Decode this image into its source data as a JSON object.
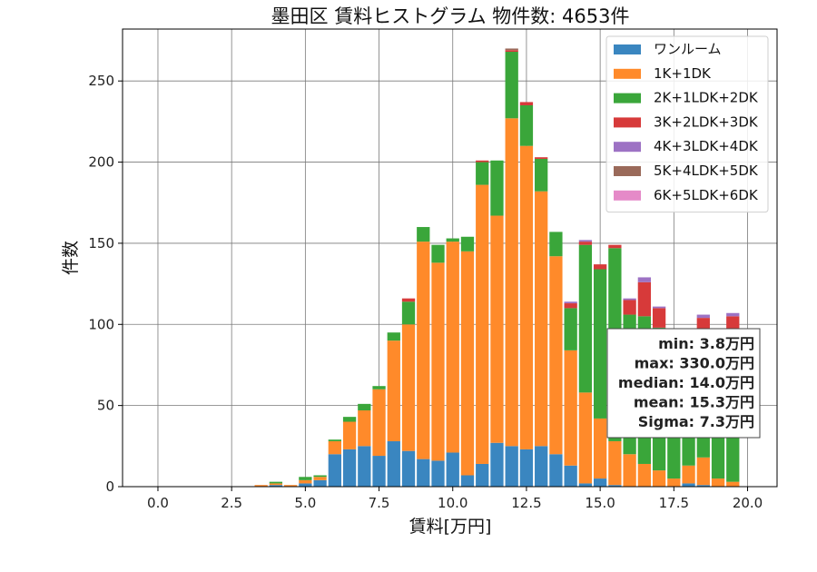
{
  "chart_data": {
    "type": "bar",
    "stacked": true,
    "title": "墨田区 賃料ヒストグラム 物件数: 4653件",
    "xlabel": "賃料[万円]",
    "ylabel": "件数",
    "xlim": [
      -1.2,
      21.0
    ],
    "ylim": [
      0,
      282
    ],
    "xticks": [
      0.0,
      2.5,
      5.0,
      7.5,
      10.0,
      12.5,
      15.0,
      17.5,
      20.0
    ],
    "xtick_labels": [
      "0.0",
      "2.5",
      "5.0",
      "7.5",
      "10.0",
      "12.5",
      "15.0",
      "17.5",
      "20.0"
    ],
    "yticks": [
      0,
      50,
      100,
      150,
      200,
      250
    ],
    "ytick_labels": [
      "0",
      "50",
      "100",
      "150",
      "200",
      "250"
    ],
    "grid": true,
    "legend_position": "top-right",
    "bin_width": 0.5,
    "x": [
      3.5,
      4.0,
      4.5,
      5.0,
      5.5,
      6.0,
      6.5,
      7.0,
      7.5,
      8.0,
      8.5,
      9.0,
      9.5,
      10.0,
      10.5,
      11.0,
      11.5,
      12.0,
      12.5,
      13.0,
      13.5,
      14.0,
      14.5,
      15.0,
      15.5,
      16.0,
      16.5,
      17.0,
      17.5,
      18.0,
      18.5,
      19.0,
      19.5
    ],
    "series": [
      {
        "name": "ワンルーム",
        "color": "#3a86c0",
        "values": [
          0,
          1,
          0,
          2,
          4,
          20,
          23,
          25,
          19,
          28,
          22,
          17,
          16,
          21,
          7,
          14,
          27,
          25,
          23,
          25,
          20,
          13,
          2,
          5,
          1,
          0,
          0,
          0,
          0,
          2,
          1,
          0,
          0
        ]
      },
      {
        "name": "1K+1DK",
        "color": "#ff8a2a",
        "values": [
          1,
          1,
          1,
          2,
          2,
          8,
          17,
          22,
          41,
          62,
          78,
          134,
          122,
          130,
          138,
          172,
          140,
          202,
          187,
          157,
          122,
          71,
          56,
          37,
          27,
          20,
          14,
          10,
          5,
          11,
          17,
          5,
          3
        ]
      },
      {
        "name": "2K+1LDK+2DK",
        "color": "#3aa63a",
        "values": [
          0,
          1,
          0,
          2,
          1,
          1,
          3,
          4,
          2,
          5,
          14,
          9,
          11,
          2,
          9,
          14,
          34,
          41,
          25,
          20,
          15,
          26,
          91,
          92,
          119,
          86,
          91,
          88,
          76,
          75,
          72,
          91,
          92
        ]
      },
      {
        "name": "3K+2LDK+3DK",
        "color": "#d73a3a",
        "values": [
          0,
          0,
          0,
          0,
          0,
          0,
          0,
          0,
          0,
          0,
          2,
          0,
          0,
          0,
          0,
          1,
          0,
          1,
          2,
          1,
          0,
          3,
          2,
          3,
          2,
          9,
          21,
          12,
          0,
          0,
          14,
          0,
          10
        ]
      },
      {
        "name": "4K+3LDK+4DK",
        "color": "#9d72c4",
        "values": [
          0,
          0,
          0,
          0,
          0,
          0,
          0,
          0,
          0,
          0,
          0,
          0,
          0,
          0,
          0,
          0,
          0,
          0,
          0,
          0,
          0,
          1,
          1,
          0,
          0,
          1,
          3,
          1,
          0,
          0,
          2,
          0,
          2
        ]
      },
      {
        "name": "5K+4LDK+5DK",
        "color": "#9a6a5a",
        "values": [
          0,
          0,
          0,
          0,
          0,
          0,
          0,
          0,
          0,
          0,
          0,
          0,
          0,
          0,
          0,
          0,
          0,
          1,
          0,
          0,
          0,
          0,
          0,
          0,
          0,
          0,
          0,
          0,
          0,
          0,
          0,
          0,
          0
        ]
      },
      {
        "name": "6K+5LDK+6DK",
        "color": "#e58ac8",
        "values": [
          0,
          0,
          0,
          0,
          0,
          0,
          0,
          0,
          0,
          0,
          0,
          0,
          0,
          0,
          0,
          0,
          0,
          0,
          0,
          0,
          0,
          0,
          0,
          0,
          0,
          0,
          0,
          0,
          0,
          0,
          0,
          0,
          0
        ]
      }
    ],
    "stats": [
      "min: 3.8万円",
      "max: 330.0万円",
      "median: 14.0万円",
      "mean: 15.3万円",
      "Sigma: 7.3万円"
    ]
  }
}
